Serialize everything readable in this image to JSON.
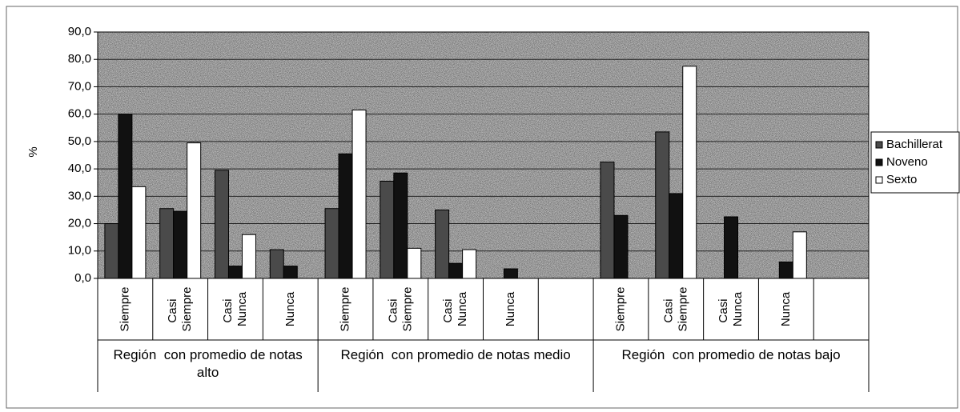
{
  "chart_data": {
    "type": "bar",
    "y_label": "%",
    "categories": [
      "Siempre",
      "Casi Siempre",
      "Casi Nunca",
      "Nunca",
      "Siempre",
      "Casi Siempre",
      "Casi Nunca",
      "Nunca",
      null,
      "Siempre",
      "Casi Siempre",
      "Casi Nunca",
      "Nunca",
      null
    ],
    "groups": [
      {
        "label": "Región  con promedio de notas alto",
        "span": [
          0,
          3
        ]
      },
      {
        "label": "Región  con promedio de notas medio",
        "span": [
          4,
          8
        ]
      },
      {
        "label": "Región  con promedio de notas bajo",
        "span": [
          9,
          13
        ]
      }
    ],
    "series": [
      {
        "name": "Bachillerat",
        "color": "#4a4a4a",
        "values": [
          20,
          25.5,
          39.5,
          10.5,
          25.5,
          35.5,
          25,
          0,
          null,
          42.5,
          53.5,
          0,
          0,
          null
        ]
      },
      {
        "name": "Noveno",
        "color": "#111111",
        "values": [
          60,
          24.5,
          4.5,
          4.5,
          45.5,
          38.5,
          5.5,
          3.5,
          null,
          23,
          31,
          22.5,
          6,
          null
        ]
      },
      {
        "name": "Sexto",
        "color": "#ffffff",
        "values": [
          33.5,
          49.5,
          16,
          0,
          61.5,
          11,
          10.5,
          0,
          null,
          0,
          77.5,
          0,
          17,
          null
        ]
      }
    ],
    "ylim": [
      0,
      90
    ],
    "yticks": [
      {
        "value": 0,
        "label": "0,0"
      },
      {
        "value": 10,
        "label": "10,0"
      },
      {
        "value": 20,
        "label": "20,0"
      },
      {
        "value": 30,
        "label": "30,0"
      },
      {
        "value": 40,
        "label": "40,0"
      },
      {
        "value": 50,
        "label": "50,0"
      },
      {
        "value": 60,
        "label": "60,0"
      },
      {
        "value": 70,
        "label": "70,0"
      },
      {
        "value": 80,
        "label": "80,0"
      },
      {
        "value": 90,
        "label": "90,0"
      }
    ],
    "grid": true,
    "legend": "right"
  }
}
